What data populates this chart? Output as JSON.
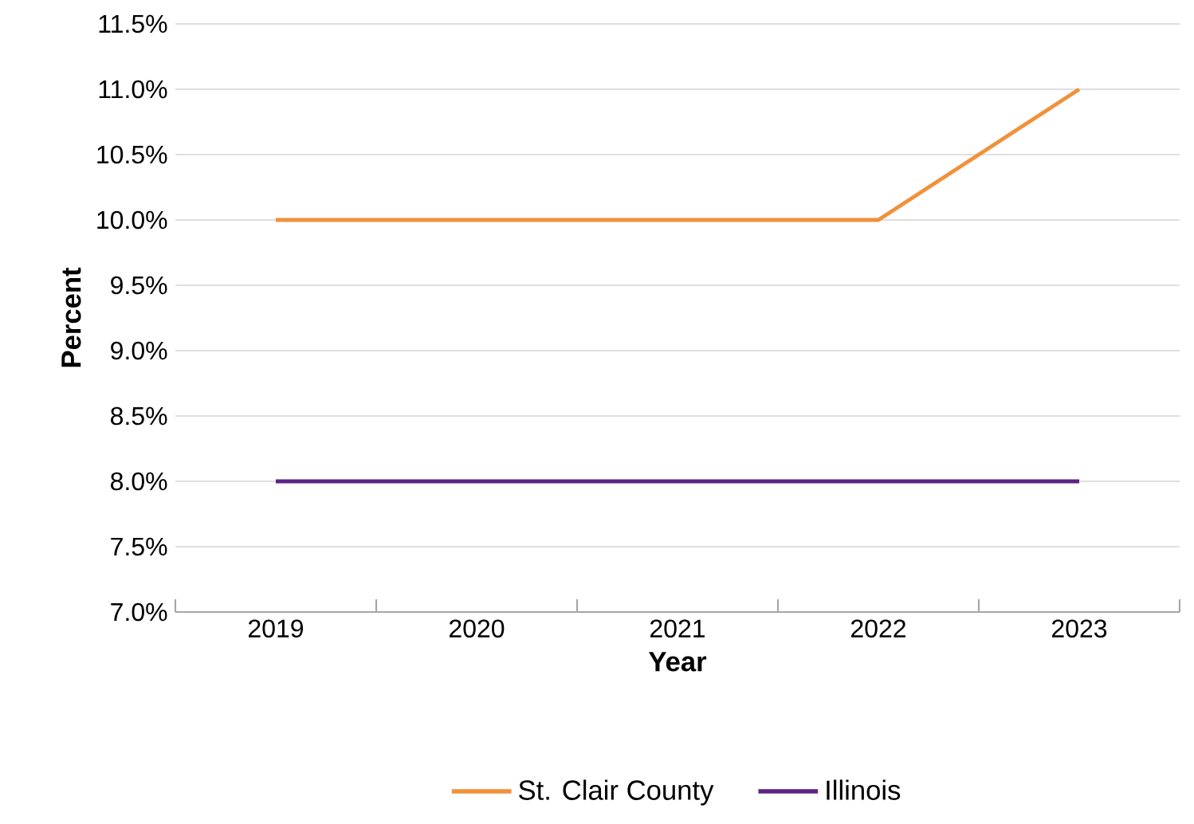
{
  "chart_data": {
    "type": "line",
    "xlabel": "Year",
    "ylabel": "Percent",
    "categories": [
      "2019",
      "2020",
      "2021",
      "2022",
      "2023"
    ],
    "series": [
      {
        "name": "St. Clair County",
        "color": "#f0913a",
        "values": [
          10,
          10,
          10,
          10,
          11
        ]
      },
      {
        "name": "Illinois",
        "color": "#5c2483",
        "values": [
          8,
          8,
          8,
          8,
          8
        ]
      }
    ],
    "ylim": [
      7,
      11.5
    ],
    "yticks": [
      {
        "value": 7,
        "label": "7.0%"
      },
      {
        "value": 7.5,
        "label": "7.5%"
      },
      {
        "value": 8,
        "label": "8.0%"
      },
      {
        "value": 8.5,
        "label": "8.5%"
      },
      {
        "value": 9,
        "label": "9.0%"
      },
      {
        "value": 9.5,
        "label": "9.5%"
      },
      {
        "value": 10,
        "label": "10.0%"
      },
      {
        "value": 10.5,
        "label": "10.5%"
      },
      {
        "value": 11,
        "label": "11.0%"
      },
      {
        "value": 11.5,
        "label": "11.5%"
      }
    ],
    "grid": "y",
    "legend": "bottom",
    "marker": "none",
    "line_style": "solid"
  }
}
